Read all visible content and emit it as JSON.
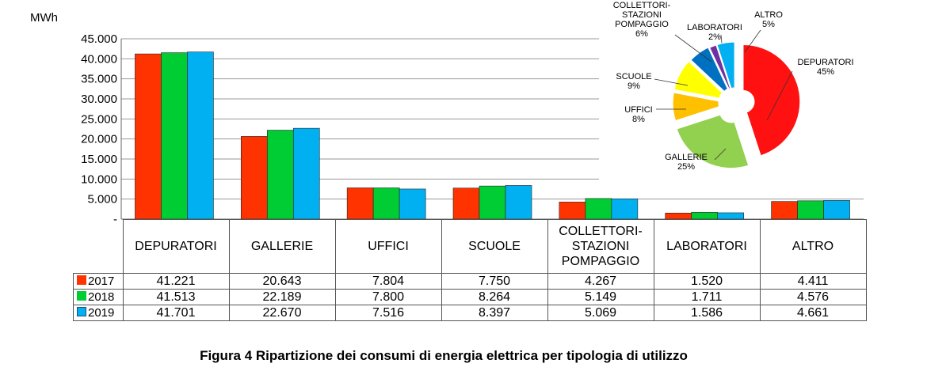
{
  "chart_data": [
    {
      "type": "bar",
      "ylabel": "MWh",
      "ylim": [
        0,
        45000
      ],
      "yticks": [
        "45.000",
        "40.000",
        "35.000",
        "30.000",
        "25.000",
        "20.000",
        "15.000",
        "10.000",
        "5.000",
        "-"
      ],
      "ytick_values": [
        45000,
        40000,
        35000,
        30000,
        25000,
        20000,
        15000,
        10000,
        5000,
        0
      ],
      "grid": true,
      "categories": [
        "DEPURATORI",
        "GALLERIE",
        "UFFICI",
        "SCUOLE",
        "COLLETTORI-\nSTAZIONI\nPOMPAGGIO",
        "LABORATORI",
        "ALTRO"
      ],
      "series": [
        {
          "name": "2017",
          "color": "#ff3300",
          "values": [
            41221,
            20643,
            7804,
            7750,
            4267,
            1520,
            4411
          ],
          "labels": [
            "41.221",
            "20.643",
            "7.804",
            "7.750",
            "4.267",
            "1.520",
            "4.411"
          ]
        },
        {
          "name": "2018",
          "color": "#00cc33",
          "values": [
            41513,
            22189,
            7800,
            8264,
            5149,
            1711,
            4576
          ],
          "labels": [
            "41.513",
            "22.189",
            "7.800",
            "8.264",
            "5.149",
            "1.711",
            "4.576"
          ]
        },
        {
          "name": "2019",
          "color": "#00b0f0",
          "values": [
            41701,
            22670,
            7516,
            8397,
            5069,
            1586,
            4661
          ],
          "labels": [
            "41.701",
            "22.670",
            "7.516",
            "8.397",
            "5.069",
            "1.586",
            "4.661"
          ]
        }
      ],
      "legend": "data-table"
    },
    {
      "type": "pie",
      "slices": [
        {
          "label": "DEPURATORI",
          "percent_label": "45%",
          "value": 45,
          "color": "#ff1111"
        },
        {
          "label": "GALLERIE",
          "percent_label": "25%",
          "value": 25,
          "color": "#92d050"
        },
        {
          "label": "UFFICI",
          "percent_label": "8%",
          "value": 8,
          "color": "#ffc000"
        },
        {
          "label": "SCUOLE",
          "percent_label": "9%",
          "value": 9,
          "color": "#ffff00"
        },
        {
          "label": "COLLETTORI-\nSTAZIONI\nPOMPAGGIO",
          "percent_label": "6%",
          "value": 6,
          "color": "#0070c0"
        },
        {
          "label": "LABORATORI",
          "percent_label": "2%",
          "value": 2,
          "color": "#7030a0"
        },
        {
          "label": "ALTRO",
          "percent_label": "5%",
          "value": 5,
          "color": "#00b0f0"
        }
      ]
    }
  ],
  "caption": "Figura 4 Ripartizione dei consumi di energia elettrica per tipologia di utilizzo"
}
